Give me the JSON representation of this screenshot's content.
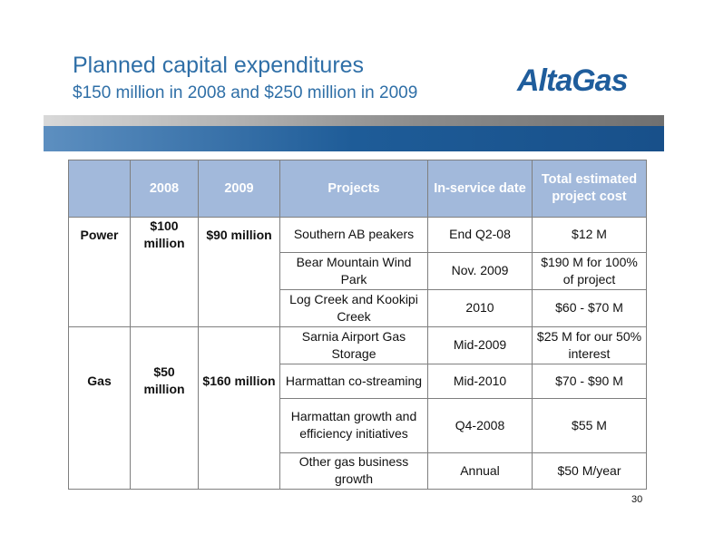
{
  "header": {
    "title": "Planned capital expenditures",
    "subtitle": "$150 million in 2008 and $250 million in 2009",
    "logo_text": "AltaGas"
  },
  "table": {
    "columns": [
      "",
      "2008",
      "2009",
      "Projects",
      "In-service date",
      "Total estimated project cost"
    ],
    "power": {
      "segment": "Power",
      "y2008": "$100 million",
      "y2009": "$90 million",
      "rows": [
        {
          "project": "Southern AB peakers",
          "date": "End Q2-08",
          "cost": "$12 M"
        },
        {
          "project": "Bear Mountain Wind Park",
          "date": "Nov. 2009",
          "cost": "$190 M for 100% of project"
        },
        {
          "project": "Log Creek and Kookipi Creek",
          "date": "2010",
          "cost": "$60 - $70 M"
        }
      ]
    },
    "gas": {
      "segment": "Gas",
      "y2008": "$50 million",
      "y2009": "$160 million",
      "rows": [
        {
          "project": "Sarnia Airport Gas Storage",
          "date": "Mid-2009",
          "cost": "$25 M for our 50% interest"
        },
        {
          "project": "Harmattan co-streaming",
          "date": "Mid-2010",
          "cost": "$70 - $90 M"
        },
        {
          "project": "Harmattan growth and efficiency initiatives",
          "date": "Q4-2008",
          "cost": "$55 M"
        },
        {
          "project": "Other gas business growth",
          "date": "Annual",
          "cost": "$50 M/year"
        }
      ]
    }
  },
  "page_number": "30",
  "colors": {
    "title": "#2f6fa7",
    "header_fill": "#a2b9db",
    "band_blue": "#1e5c98",
    "logo": "#1f5d9c"
  }
}
